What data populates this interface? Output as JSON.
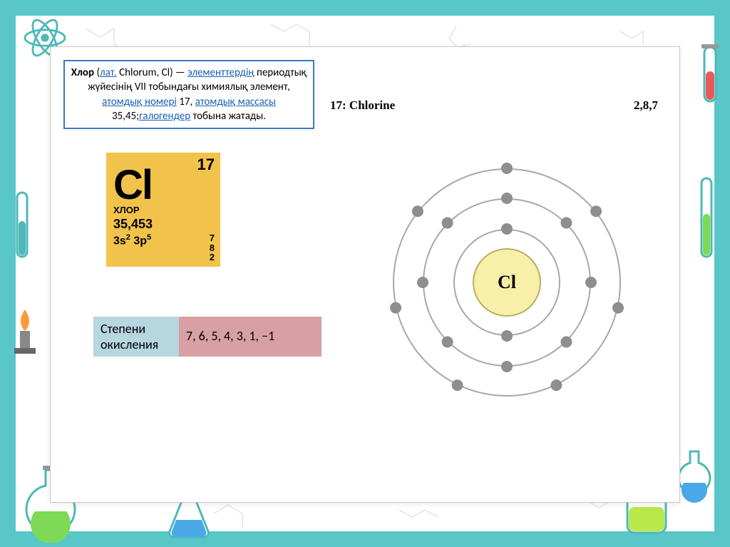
{
  "frame": {
    "border_color": "#59c6c8",
    "background": "#ffffff"
  },
  "description": {
    "border_color": "#3c78c0",
    "parts": {
      "title": "Хлор",
      "lat_link": "лат.",
      "latin": " Chlorum, Cl) —",
      "elem_link": "элементтердің",
      "mid": " периодтық жүйесінің VІІ тобындағы химиялық элемент, ",
      "atomnum_link": "атомдық номері",
      "atomnum": " 17, ",
      "atommass_link": "атомдық массасы",
      "atommass": " 35,45;",
      "halogen_link": "галогендер",
      "tail": " тобына жатады."
    }
  },
  "header_row": {
    "left": "17: Chlorine",
    "right": "2,8,7"
  },
  "element_tile": {
    "bg_color": "#f2c34b",
    "number": "17",
    "symbol": "Cl",
    "name_ru": "ХЛОР",
    "mass": "35,453",
    "config_html": "3s<sup>2</sup> 3p<sup>5</sup>",
    "shells": [
      "7",
      "8",
      "2"
    ]
  },
  "oxidation": {
    "label": "Степени окисления",
    "label_bg": "#b6d6e0",
    "values": "7, 6, 5, 4, 3, 1, −1",
    "values_bg": "#d9a0a3"
  },
  "bohr": {
    "shell_color": "#a8a8a8",
    "electron_color": "#8e8e8e",
    "nucleus_fill": "#f8f0a8",
    "nucleus_border": "#b8b060",
    "nucleus_label": "Cl",
    "nucleus_radius": 48,
    "shells": [
      {
        "radius": 75,
        "electrons": 2,
        "start_deg": -90
      },
      {
        "radius": 118,
        "electrons": 8,
        "start_deg": -90
      },
      {
        "radius": 160,
        "electrons": 7,
        "start_deg": -90
      }
    ]
  },
  "decorations": {
    "strokes": "#cfd6dc",
    "flask_green": "#7ed957",
    "flask_lime": "#b8e84a",
    "tube_red": "#e85a5a",
    "tube_blue": "#4aa8e8",
    "atom_teal": "#4db8b8"
  }
}
